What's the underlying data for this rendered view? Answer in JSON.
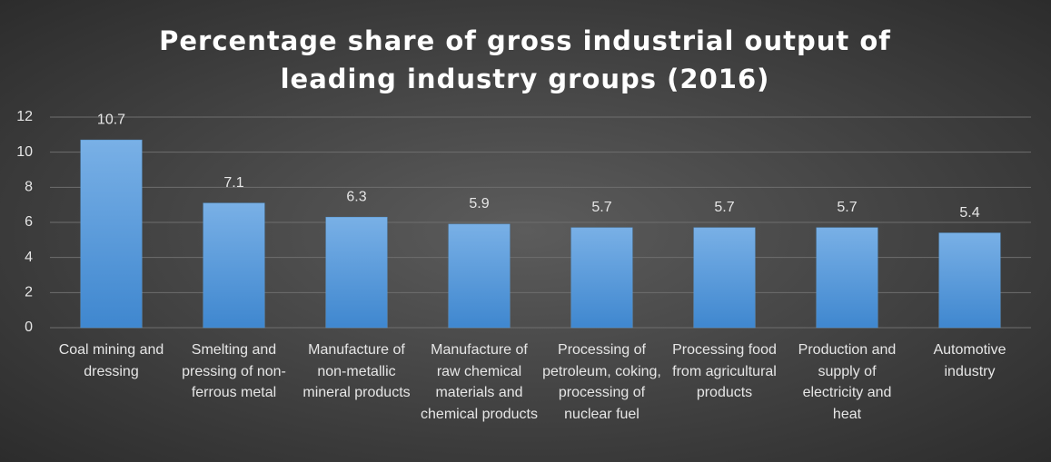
{
  "chart_data": {
    "type": "bar",
    "title": "Percentage share of gross industrial output of leading industry groups (2016)",
    "categories": [
      "Coal mining and dressing",
      "Smelting and pressing of non-ferrous metal",
      "Manufacture of non-metallic mineral products",
      "Manufacture of raw chemical materials and chemical products",
      "Processing of petroleum, coking, processing of nuclear fuel",
      "Processing food from agricultural products",
      "Production and supply of electricity and heat",
      "Automotive industry"
    ],
    "values": [
      10.7,
      7.1,
      6.3,
      5.9,
      5.7,
      5.7,
      5.7,
      5.4
    ],
    "color": "#5b9bd5",
    "ylim": [
      0,
      12
    ],
    "yticks": [
      0,
      2,
      4,
      6,
      8,
      10,
      12
    ],
    "grid": true
  }
}
